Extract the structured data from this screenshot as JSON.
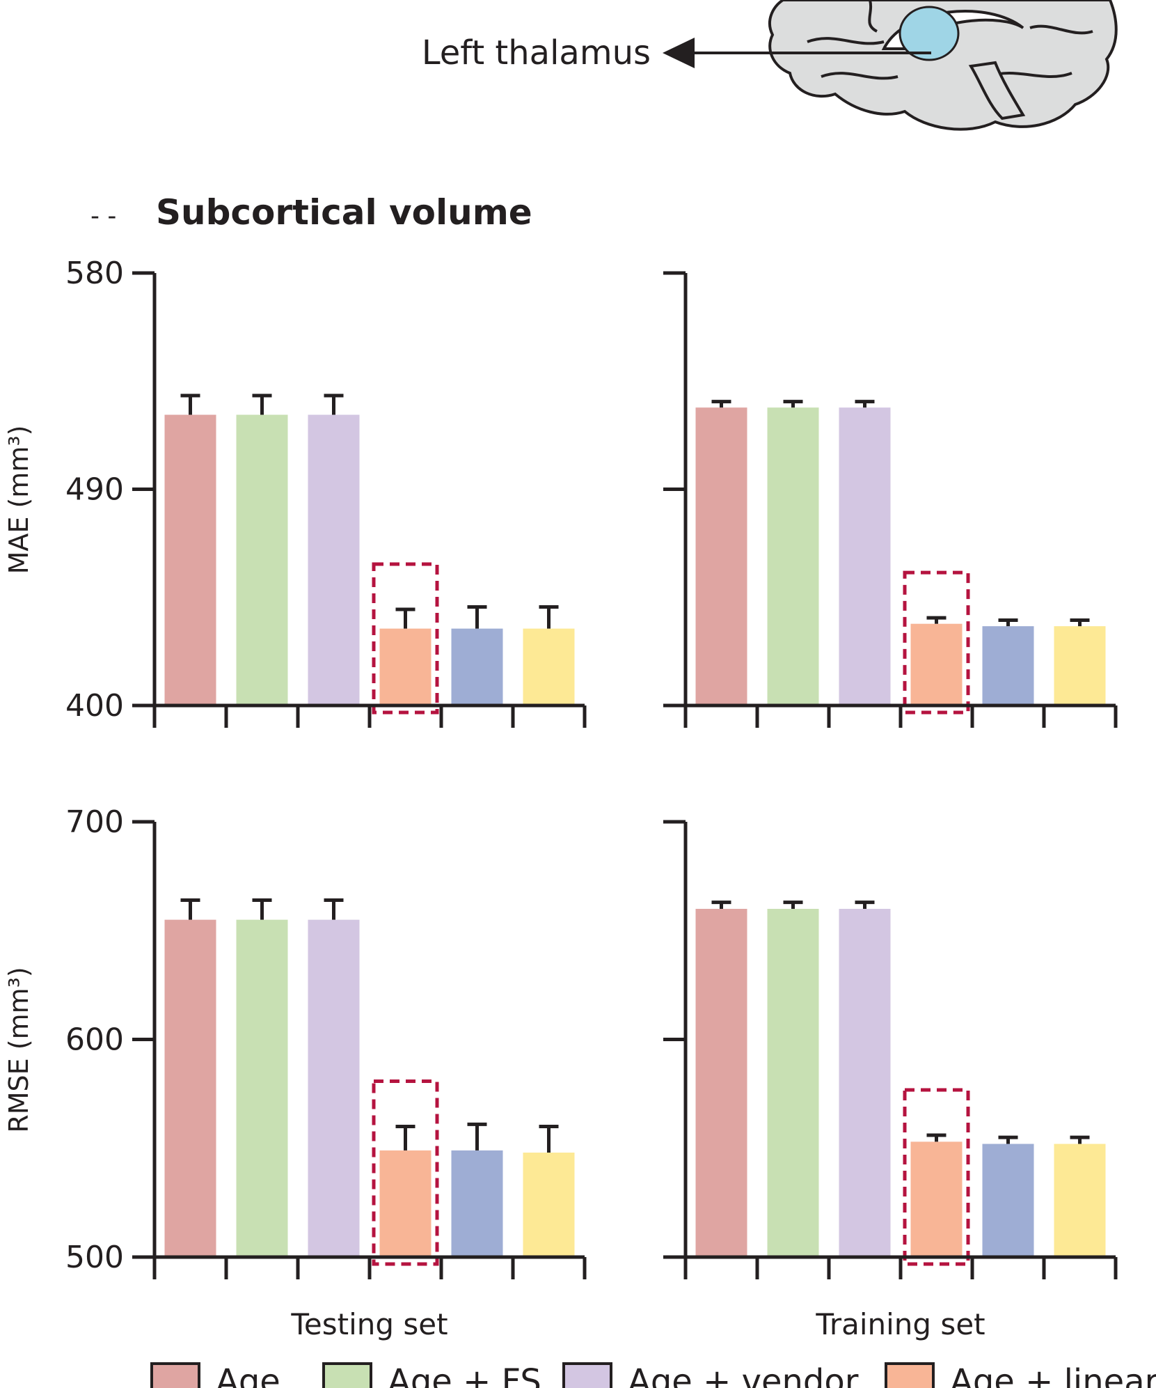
{
  "annotation": {
    "label": "Left thalamus"
  },
  "panel_title": "Subcortical volume",
  "legend": [
    {
      "label": "Age",
      "color": "#dfa5a2"
    },
    {
      "label": "Age + FS",
      "color": "#c8e0b3"
    },
    {
      "label": "Age + vendor",
      "color": "#d3c6e2"
    },
    {
      "label": "Age + linear l",
      "color": "#f8b596"
    }
  ],
  "colors": [
    "#dfa5a2",
    "#c8e0b3",
    "#d3c6e2",
    "#f8b596",
    "#9eadd4",
    "#fde995"
  ],
  "highlight_color": "#b5133f",
  "brain_color": "#dcdddd",
  "thalamus_color": "#9fd5e6",
  "chart_data": [
    {
      "type": "bar",
      "panel": "MAE - Testing set",
      "ylabel": "MAE (mm³)",
      "xlabel": "Testing set",
      "ylim": [
        400,
        580
      ],
      "yticks": [
        400,
        490,
        580
      ],
      "show_ytick_labels": true,
      "series": [
        {
          "value": 521,
          "error": 8
        },
        {
          "value": 521,
          "error": 8
        },
        {
          "value": 521,
          "error": 8
        },
        {
          "value": 432,
          "error": 8
        },
        {
          "value": 432,
          "error": 9
        },
        {
          "value": 432,
          "error": 9
        }
      ],
      "highlight_index": 3
    },
    {
      "type": "bar",
      "panel": "MAE - Training set",
      "ylabel": "",
      "xlabel": "Training set",
      "ylim": [
        400,
        580
      ],
      "yticks": [
        400,
        490,
        580
      ],
      "show_ytick_labels": false,
      "series": [
        {
          "value": 524,
          "error": 2.5
        },
        {
          "value": 524,
          "error": 2.5
        },
        {
          "value": 524,
          "error": 2.5
        },
        {
          "value": 434,
          "error": 2.5
        },
        {
          "value": 433,
          "error": 2.5
        },
        {
          "value": 433,
          "error": 2.5
        }
      ],
      "highlight_index": 3
    },
    {
      "type": "bar",
      "panel": "RMSE - Testing set",
      "ylabel": "RMSE (mm³)",
      "xlabel": "Testing set",
      "ylim": [
        500,
        700
      ],
      "yticks": [
        500,
        600,
        700
      ],
      "show_ytick_labels": true,
      "series": [
        {
          "value": 655,
          "error": 9
        },
        {
          "value": 655,
          "error": 9
        },
        {
          "value": 655,
          "error": 9
        },
        {
          "value": 549,
          "error": 11
        },
        {
          "value": 549,
          "error": 12
        },
        {
          "value": 548,
          "error": 12
        }
      ],
      "highlight_index": 3
    },
    {
      "type": "bar",
      "panel": "RMSE - Training set",
      "ylabel": "",
      "xlabel": "Training set",
      "ylim": [
        500,
        700
      ],
      "yticks": [
        500,
        600,
        700
      ],
      "show_ytick_labels": false,
      "series": [
        {
          "value": 660,
          "error": 3
        },
        {
          "value": 660,
          "error": 3
        },
        {
          "value": 660,
          "error": 3
        },
        {
          "value": 553,
          "error": 3
        },
        {
          "value": 552,
          "error": 3
        },
        {
          "value": 552,
          "error": 3
        }
      ],
      "highlight_index": 3
    }
  ]
}
